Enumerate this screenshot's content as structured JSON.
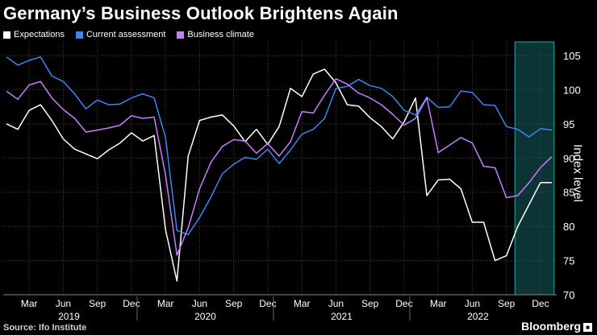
{
  "title": "Germany’s Business Outlook Brightens Again",
  "source": "Source: Ifo Institute",
  "brand": "Bloomberg",
  "brand_icon": "bloomberg-terminal-icon",
  "chart_data": {
    "type": "line",
    "ylabel": "Index level",
    "ylim": [
      70,
      107
    ],
    "yticks": [
      70,
      75,
      80,
      85,
      90,
      95,
      100,
      105
    ],
    "grid": true,
    "legend_position": "top-left",
    "month_labels": [
      "Mar",
      "Jun",
      "Sep",
      "Dec",
      "Mar",
      "Jun",
      "Sep",
      "Dec",
      "Mar",
      "Jun",
      "Sep",
      "Dec",
      "Mar",
      "Jun",
      "Sep",
      "Dec"
    ],
    "month_label_index": [
      2,
      5,
      8,
      11,
      14,
      17,
      20,
      23,
      26,
      29,
      32,
      35,
      38,
      41,
      44,
      47
    ],
    "year_labels": [
      "2019",
      "2020",
      "2021",
      "2022"
    ],
    "year_label_index": [
      5.5,
      17.5,
      29.5,
      41.5
    ],
    "highlight_range": [
      44.75,
      48.2
    ],
    "x": [
      "2019-01",
      "2019-02",
      "2019-03",
      "2019-04",
      "2019-05",
      "2019-06",
      "2019-07",
      "2019-08",
      "2019-09",
      "2019-10",
      "2019-11",
      "2019-12",
      "2020-01",
      "2020-02",
      "2020-03",
      "2020-04",
      "2020-05",
      "2020-06",
      "2020-07",
      "2020-08",
      "2020-09",
      "2020-10",
      "2020-11",
      "2020-12",
      "2021-01",
      "2021-02",
      "2021-03",
      "2021-04",
      "2021-05",
      "2021-06",
      "2021-07",
      "2021-08",
      "2021-09",
      "2021-10",
      "2021-11",
      "2021-12",
      "2022-01",
      "2022-02",
      "2022-03",
      "2022-04",
      "2022-05",
      "2022-06",
      "2022-07",
      "2022-08",
      "2022-09",
      "2022-10",
      "2022-11",
      "2022-12",
      "2023-01"
    ],
    "series": [
      {
        "name": "Expectations",
        "color": "#ffffff",
        "values": [
          95,
          94.2,
          97,
          97.8,
          95.5,
          92.8,
          91.3,
          90.6,
          89.9,
          91.2,
          92.2,
          93.7,
          92.5,
          93.3,
          79.5,
          72,
          90.3,
          95.5,
          96,
          96.3,
          94.7,
          92.4,
          94.2,
          92,
          94.6,
          100.2,
          99,
          102.3,
          103,
          101,
          97.8,
          97.6,
          95.9,
          94.6,
          92.8,
          95.3,
          98.8,
          84.5,
          86.8,
          86.9,
          85.5,
          80.6,
          80.6,
          75,
          75.7,
          80,
          83.2,
          86.4,
          86.4
        ]
      },
      {
        "name": "Current assessment",
        "color": "#3a86f2",
        "values": [
          104.8,
          103.6,
          104.3,
          104.8,
          102,
          101.2,
          99.4,
          97.2,
          98.5,
          97.8,
          97.9,
          98.8,
          99.4,
          98.8,
          93,
          79.4,
          78.8,
          81.3,
          84.3,
          87.7,
          89.1,
          90.1,
          89.8,
          91.3,
          89.2,
          91.2,
          93.5,
          94.2,
          95.8,
          100.2,
          100.5,
          101.5,
          100.6,
          100.2,
          99.0,
          97.0,
          96.3,
          98.9,
          97.4,
          97.5,
          99.8,
          99.6,
          97.8,
          97.7,
          94.6,
          94.2,
          93.1,
          94.3,
          94.1
        ]
      },
      {
        "name": "Business climate",
        "color": "#c97cff",
        "values": [
          99.8,
          98.6,
          100.7,
          101.2,
          98.8,
          97.1,
          95.8,
          93.8,
          94.1,
          94.4,
          94.8,
          96.2,
          95.8,
          96.0,
          87.5,
          75.8,
          79.8,
          85.5,
          89.4,
          91.7,
          92.7,
          92.5,
          90.7,
          92.1,
          90.3,
          92.4,
          96.8,
          96.6,
          99.2,
          101.6,
          100.8,
          99.5,
          98.8,
          97.8,
          96.4,
          94.8,
          95.8,
          98.8,
          90.8,
          91.9,
          93.0,
          92.2,
          88.8,
          88.6,
          84.2,
          84.5,
          86.4,
          88.6,
          90.2
        ]
      }
    ]
  }
}
